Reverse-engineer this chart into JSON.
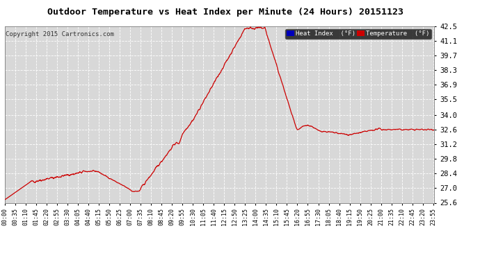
{
  "title": "Outdoor Temperature vs Heat Index per Minute (24 Hours) 20151123",
  "copyright": "Copyright 2015 Cartronics.com",
  "background_color": "#ffffff",
  "plot_bg_color": "#d8d8d8",
  "grid_color": "#ffffff",
  "line_color": "#cc0000",
  "legend_heat_bg": "#0000bb",
  "legend_temp_bg": "#cc0000",
  "legend_text_color": "#ffffff",
  "title_color": "#000000",
  "ylim": [
    25.6,
    42.5
  ],
  "yticks": [
    25.6,
    27.0,
    28.4,
    29.8,
    31.2,
    32.6,
    34.0,
    35.5,
    36.9,
    38.3,
    39.7,
    41.1,
    42.5
  ],
  "xtick_labels": [
    "00:00",
    "00:35",
    "01:10",
    "01:45",
    "02:20",
    "02:55",
    "03:30",
    "04:05",
    "04:40",
    "05:15",
    "05:50",
    "06:25",
    "07:00",
    "07:35",
    "08:10",
    "08:45",
    "09:20",
    "09:55",
    "10:30",
    "11:05",
    "11:40",
    "12:15",
    "12:50",
    "13:25",
    "14:00",
    "14:35",
    "15:10",
    "15:45",
    "16:20",
    "16:55",
    "17:30",
    "18:05",
    "18:40",
    "19:15",
    "19:50",
    "20:25",
    "21:00",
    "21:35",
    "22:10",
    "22:45",
    "23:20",
    "23:55"
  ],
  "n_points": 1440
}
